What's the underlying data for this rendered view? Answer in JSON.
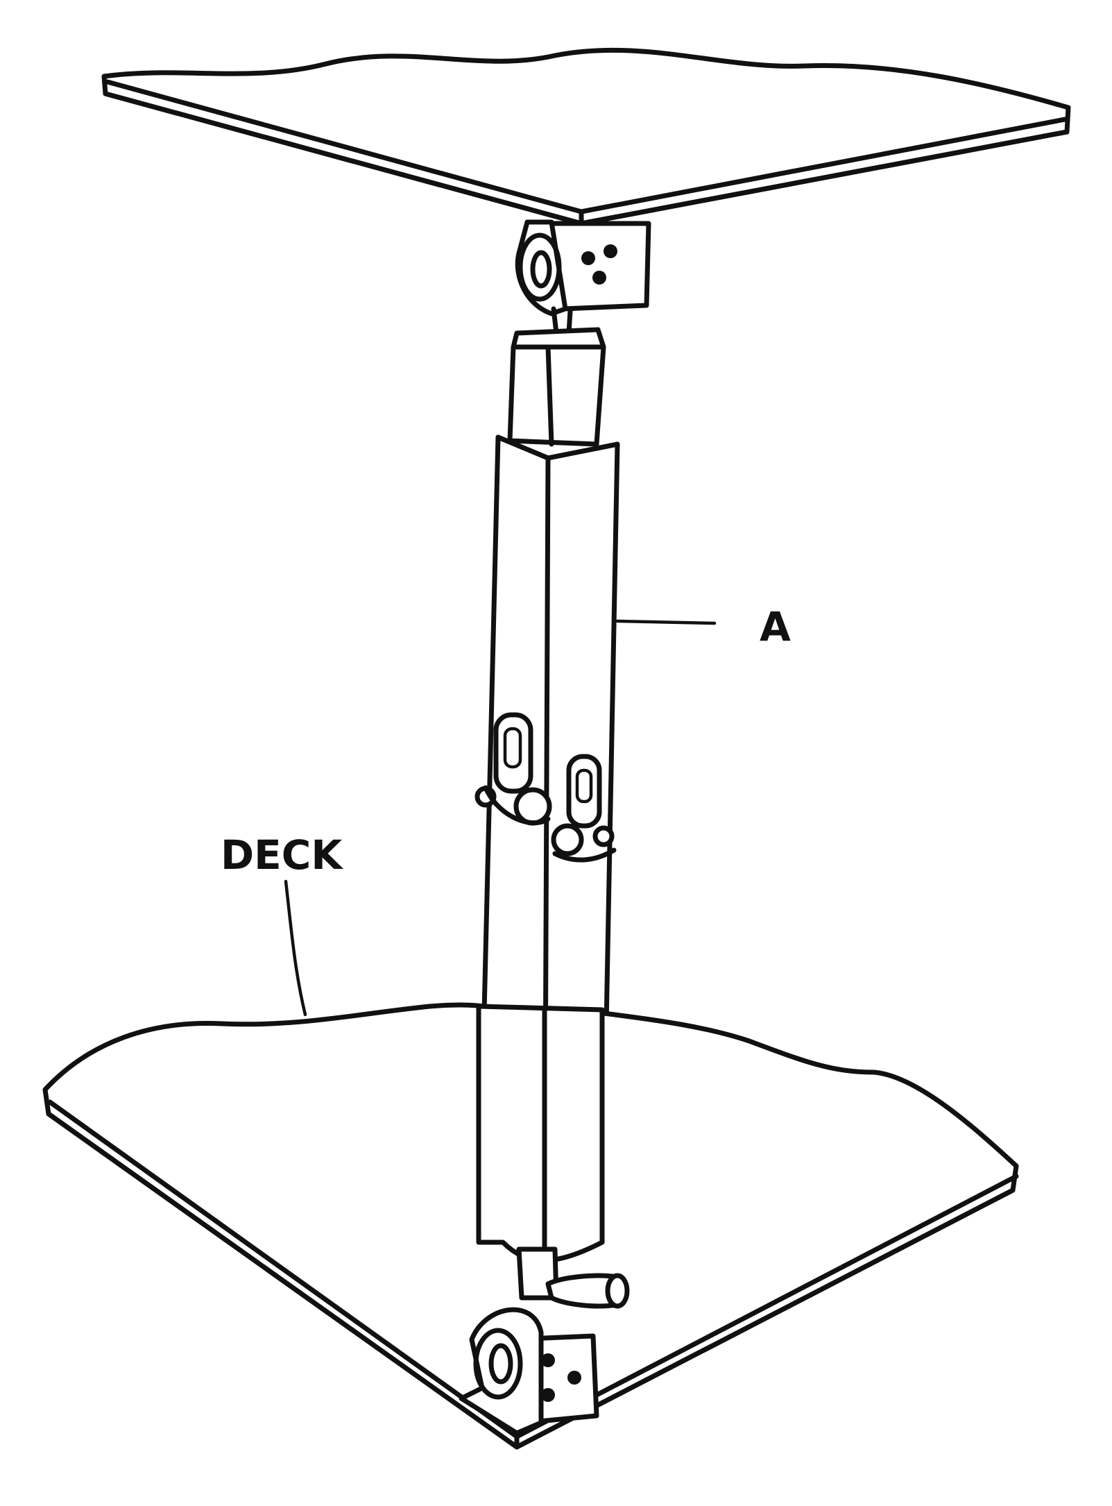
{
  "labels": {
    "part_a": "A",
    "deck": "DECK"
  }
}
